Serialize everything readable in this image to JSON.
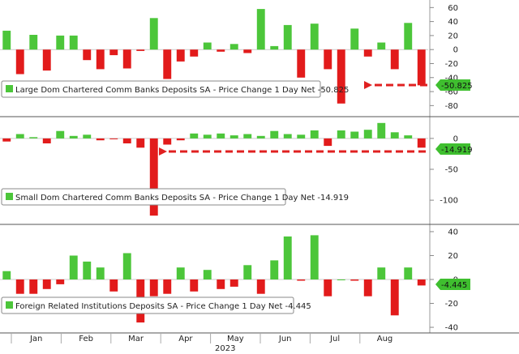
{
  "colors": {
    "positive": "#4cc63a",
    "negative": "#e21b1b",
    "arrow": "#e02020",
    "badge_positive": "#3fbf2f",
    "badge_negative": "#3fbf2f",
    "grid": "#bbbbbb"
  },
  "x_axis": {
    "months": [
      "Jan",
      "Feb",
      "Mar",
      "Apr",
      "May",
      "Jun",
      "Jul",
      "Aug"
    ],
    "year": "2023"
  },
  "chart_data": [
    {
      "type": "bar",
      "panel": "large-banks",
      "legend": "Large Dom Chartered Comm Banks Deposits SA - Price Change 1 Day Net -50.825",
      "last_value_label": "-50.825",
      "ylim": [
        -90,
        65
      ],
      "yticks": [
        60,
        40,
        20,
        0,
        -20,
        -40,
        -60,
        -80
      ],
      "values": [
        27,
        -35,
        21,
        -30,
        20,
        20,
        -15,
        -28,
        -8,
        -27,
        -2,
        45,
        -42,
        -17,
        -10,
        10,
        -3,
        8,
        -5,
        58,
        5,
        35,
        -40,
        37,
        -28,
        -77,
        30,
        -10,
        10,
        -28,
        38,
        -51
      ]
    },
    {
      "type": "bar",
      "panel": "small-banks",
      "legend": "Small Dom Chartered Comm Banks Deposits SA - Price Change 1 Day Net -14.919",
      "last_value_label": "-14.919",
      "ylim": [
        -130,
        30
      ],
      "yticks": [
        0,
        -50,
        -100
      ],
      "values": [
        -5,
        7,
        2,
        -8,
        12,
        4,
        6,
        -3,
        -1,
        -8,
        -15,
        -125,
        -10,
        -3,
        8,
        6,
        8,
        5,
        7,
        4,
        12,
        7,
        6,
        13,
        -12,
        13,
        11,
        14,
        25,
        10,
        5,
        -15
      ]
    },
    {
      "type": "bar",
      "panel": "foreign-institutions",
      "legend": "Foreign Related Institutions Deposits SA - Price Change 1 Day Net -4.445",
      "last_value_label": "-4.445",
      "ylim": [
        -42,
        42
      ],
      "yticks": [
        40,
        20,
        0,
        -20,
        -40
      ],
      "values": [
        7,
        -12,
        -12,
        -8,
        -4,
        20,
        15,
        10,
        -10,
        22,
        -36,
        -14,
        -12,
        10,
        -10,
        8,
        -8,
        -6,
        12,
        -12,
        16,
        36,
        -1,
        37,
        -14,
        0,
        -1,
        -14,
        10,
        -30,
        10,
        -5
      ]
    }
  ]
}
